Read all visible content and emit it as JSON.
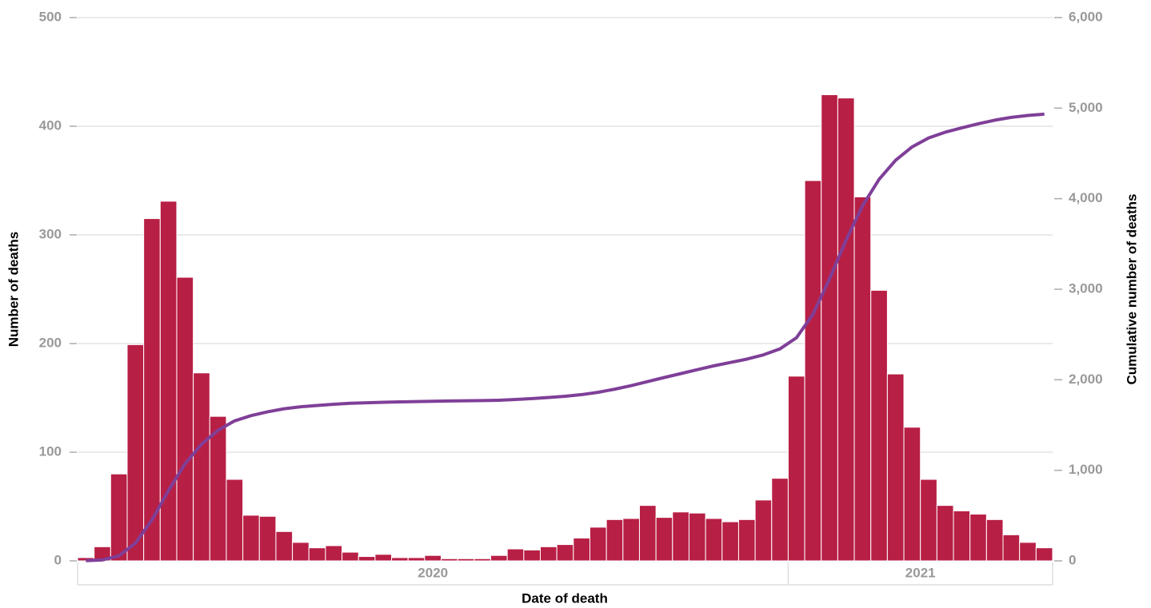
{
  "chart_data": {
    "type": "bar",
    "xlabel": "Date of death",
    "ylabel": "Number of deaths",
    "y2label": "Cumulative number of deaths",
    "categories": [
      null,
      null,
      null,
      null,
      null,
      null,
      null,
      null,
      null,
      null,
      null,
      null,
      null,
      null,
      null,
      null,
      null,
      null,
      null,
      null,
      null,
      null,
      null,
      null,
      null,
      null,
      null,
      null,
      null,
      null,
      null,
      null,
      null,
      null,
      null,
      null,
      null,
      null,
      null,
      null,
      null,
      null,
      null,
      null,
      null,
      null,
      null,
      null,
      null,
      null,
      null,
      null,
      null,
      null,
      null,
      null,
      null,
      null,
      null
    ],
    "x_groups": [
      {
        "label": "2020",
        "weeks": 43
      },
      {
        "label": "2021",
        "weeks": 16
      }
    ],
    "series": [
      {
        "type": "bar",
        "color": "#b81f45",
        "values": [
          3,
          13,
          80,
          199,
          315,
          331,
          261,
          173,
          133,
          75,
          42,
          41,
          27,
          17,
          12,
          14,
          8,
          4,
          6,
          3,
          3,
          5,
          2,
          2,
          2,
          5,
          11,
          10,
          13,
          15,
          21,
          31,
          38,
          39,
          51,
          40,
          45,
          44,
          39,
          36,
          38,
          56,
          76,
          170,
          350,
          429,
          426,
          335,
          249,
          172,
          123,
          75,
          51,
          46,
          43,
          38,
          24,
          17,
          12
        ]
      },
      {
        "type": "line",
        "axis": "y2",
        "color": "#7f3f98",
        "values": [
          2,
          10,
          56,
          196,
          452,
          776,
          1072,
          1289,
          1442,
          1546,
          1604,
          1646,
          1680,
          1702,
          1716,
          1729,
          1740,
          1746,
          1751,
          1756,
          1759,
          1763,
          1766,
          1768,
          1770,
          1774,
          1782,
          1792,
          1804,
          1818,
          1836,
          1862,
          1896,
          1935,
          1980,
          2025,
          2068,
          2112,
          2154,
          2191,
          2228,
          2275,
          2341,
          2464,
          2724,
          3114,
          3541,
          3922,
          4214,
          4424,
          4572,
          4671,
          4734,
          4782,
          4827,
          4867,
          4898,
          4919,
          4933
        ]
      }
    ],
    "ylim": [
      0,
      500
    ],
    "yticks": [
      0,
      100,
      200,
      300,
      400,
      500
    ],
    "y2lim": [
      0,
      6000
    ],
    "y2ticks": [
      0,
      {
        "value": 1000,
        "label": "1,000"
      },
      {
        "value": 2000,
        "label": "2,000"
      },
      {
        "value": 3000,
        "label": "3,000"
      },
      {
        "value": 4000,
        "label": "4,000"
      },
      {
        "value": 5000,
        "label": "5,000"
      },
      {
        "value": 6000,
        "label": "6,000"
      }
    ],
    "grid": true
  }
}
